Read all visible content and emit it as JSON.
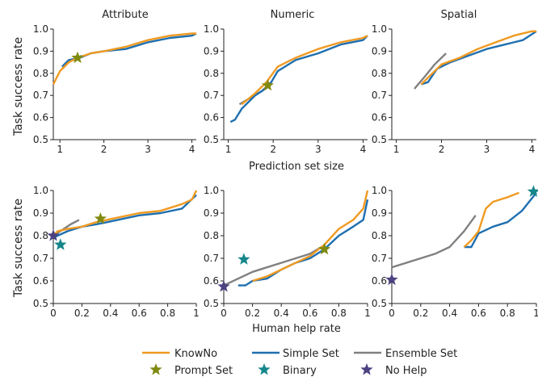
{
  "figure": {
    "columns": [
      "Attribute",
      "Numeric",
      "Spatial"
    ],
    "row_ylabels": [
      "Task success rate",
      "Task success rate"
    ],
    "row_xlabels": [
      "Prediction set size",
      "Human help rate"
    ]
  },
  "legend": {
    "placement": "bottom-center",
    "items": [
      {
        "label": "KnowNo",
        "kind": "line",
        "color": "#ef9a22"
      },
      {
        "label": "Simple Set",
        "kind": "line",
        "color": "#1f6faf"
      },
      {
        "label": "Ensemble Set",
        "kind": "line",
        "color": "#808080"
      },
      {
        "label": "Prompt Set",
        "kind": "star",
        "color": "#808a10"
      },
      {
        "label": "Binary",
        "kind": "star",
        "color": "#15868a"
      },
      {
        "label": "No Help",
        "kind": "star",
        "color": "#4a4281"
      }
    ]
  },
  "colors": {
    "knowno": "#ef9a22",
    "simple": "#1f6faf",
    "ensemble": "#808080",
    "prompt": "#808a10",
    "binary": "#15868a",
    "nohelp": "#4a4281"
  },
  "chart_data": [
    {
      "type": "line",
      "row": 0,
      "col": 0,
      "title": "Attribute",
      "xlabel": "",
      "ylabel": "Task success rate",
      "xlim": [
        0.85,
        4.1
      ],
      "ylim": [
        0.5,
        1.0
      ],
      "xticks": [
        "1",
        "2",
        "3",
        "4"
      ],
      "yticks": [
        "0.5",
        "0.6",
        "0.7",
        "0.8",
        "0.9",
        "1.0"
      ],
      "grid": false,
      "series": [
        {
          "name": "KnowNo",
          "color": "#ef9a22",
          "x": [
            0.85,
            1.0,
            1.2,
            1.4,
            1.7,
            2.0,
            2.5,
            3.0,
            3.5,
            4.0,
            4.1
          ],
          "y": [
            0.75,
            0.81,
            0.85,
            0.87,
            0.89,
            0.9,
            0.92,
            0.95,
            0.97,
            0.98,
            0.98
          ]
        },
        {
          "name": "Simple Set",
          "color": "#1f6faf",
          "x": [
            1.05,
            1.2,
            1.45,
            1.7,
            2.0,
            2.5,
            3.0,
            3.5,
            4.0,
            4.1
          ],
          "y": [
            0.83,
            0.86,
            0.87,
            0.89,
            0.9,
            0.91,
            0.94,
            0.96,
            0.97,
            0.98
          ]
        },
        {
          "name": "Ensemble Set",
          "color": "#808080",
          "x": [
            1.05,
            1.2,
            1.4,
            1.5
          ],
          "y": [
            0.82,
            0.85,
            0.87,
            0.88
          ]
        },
        {
          "name": "Prompt Set",
          "color": "#808a10",
          "marker": "star",
          "x": [
            1.4
          ],
          "y": [
            0.87
          ]
        }
      ]
    },
    {
      "type": "line",
      "row": 0,
      "col": 1,
      "title": "Numeric",
      "xlabel": "Prediction set size",
      "ylabel": "",
      "xlim": [
        0.9,
        4.1
      ],
      "ylim": [
        0.5,
        1.0
      ],
      "xticks": [
        "1",
        "2",
        "3",
        "4"
      ],
      "yticks": [
        "0.5",
        "0.6",
        "0.7",
        "0.8",
        "0.9",
        "1.0"
      ],
      "grid": false,
      "series": [
        {
          "name": "KnowNo",
          "color": "#ef9a22",
          "x": [
            1.3,
            1.6,
            1.85,
            2.1,
            2.5,
            3.0,
            3.5,
            4.0,
            4.1
          ],
          "y": [
            0.66,
            0.71,
            0.76,
            0.83,
            0.87,
            0.91,
            0.94,
            0.96,
            0.97
          ]
        },
        {
          "name": "Simple Set",
          "color": "#1f6faf",
          "x": [
            1.05,
            1.15,
            1.3,
            1.6,
            1.9,
            2.1,
            2.5,
            3.0,
            3.5,
            4.0,
            4.1
          ],
          "y": [
            0.58,
            0.59,
            0.64,
            0.7,
            0.74,
            0.81,
            0.86,
            0.89,
            0.93,
            0.95,
            0.97
          ]
        },
        {
          "name": "Ensemble Set",
          "color": "#808080",
          "x": [
            1.25,
            1.5,
            1.75,
            1.95
          ],
          "y": [
            0.66,
            0.69,
            0.72,
            0.76
          ]
        },
        {
          "name": "Prompt Set",
          "color": "#808a10",
          "marker": "star",
          "x": [
            1.88
          ],
          "y": [
            0.745
          ]
        }
      ]
    },
    {
      "type": "line",
      "row": 0,
      "col": 2,
      "title": "Spatial",
      "xlabel": "",
      "ylabel": "",
      "xlim": [
        0.9,
        4.1
      ],
      "ylim": [
        0.5,
        1.0
      ],
      "xticks": [
        "1",
        "2",
        "3",
        "4"
      ],
      "yticks": [
        "0.5",
        "0.6",
        "0.7",
        "0.8",
        "0.9",
        "1.0"
      ],
      "grid": false,
      "series": [
        {
          "name": "KnowNo",
          "color": "#ef9a22",
          "x": [
            1.55,
            1.8,
            2.0,
            2.4,
            2.8,
            3.2,
            3.6,
            4.0,
            4.1
          ],
          "y": [
            0.75,
            0.8,
            0.84,
            0.87,
            0.91,
            0.94,
            0.97,
            0.99,
            0.99
          ]
        },
        {
          "name": "Simple Set",
          "color": "#1f6faf",
          "x": [
            1.55,
            1.7,
            1.9,
            2.2,
            2.6,
            3.0,
            3.4,
            3.8,
            4.1
          ],
          "y": [
            0.75,
            0.76,
            0.82,
            0.85,
            0.88,
            0.91,
            0.93,
            0.95,
            0.99
          ]
        },
        {
          "name": "Ensemble Set",
          "color": "#808080",
          "x": [
            1.4,
            1.65,
            1.85,
            2.1
          ],
          "y": [
            0.73,
            0.79,
            0.84,
            0.89
          ]
        }
      ]
    },
    {
      "type": "line",
      "row": 1,
      "col": 0,
      "title": "",
      "xlabel": "",
      "ylabel": "Task success rate",
      "xlim": [
        0,
        1
      ],
      "ylim": [
        0.5,
        1.0
      ],
      "xticks": [
        "0",
        "0.2",
        "0.4",
        "0.6",
        "0.8",
        "1"
      ],
      "yticks": [
        "0.5",
        "0.6",
        "0.7",
        "0.8",
        "0.9",
        "1.0"
      ],
      "grid": false,
      "series": [
        {
          "name": "KnowNo",
          "color": "#ef9a22",
          "x": [
            0,
            0.03,
            0.1,
            0.2,
            0.3,
            0.45,
            0.6,
            0.75,
            0.9,
            0.97,
            1.0
          ],
          "y": [
            0.8,
            0.82,
            0.83,
            0.84,
            0.86,
            0.88,
            0.9,
            0.91,
            0.94,
            0.96,
            1.0
          ]
        },
        {
          "name": "Simple Set",
          "color": "#1f6faf",
          "x": [
            0,
            0.03,
            0.1,
            0.2,
            0.3,
            0.45,
            0.6,
            0.75,
            0.9,
            1.0
          ],
          "y": [
            0.79,
            0.8,
            0.82,
            0.84,
            0.85,
            0.87,
            0.89,
            0.9,
            0.92,
            0.98
          ]
        },
        {
          "name": "Ensemble Set",
          "color": "#808080",
          "x": [
            0,
            0.05,
            0.12,
            0.18
          ],
          "y": [
            0.8,
            0.82,
            0.85,
            0.87
          ]
        },
        {
          "name": "Prompt Set",
          "color": "#808a10",
          "marker": "star",
          "x": [
            0.33
          ],
          "y": [
            0.875
          ]
        },
        {
          "name": "Binary",
          "color": "#15868a",
          "marker": "star",
          "x": [
            0.05
          ],
          "y": [
            0.76
          ]
        },
        {
          "name": "No Help",
          "color": "#4a4281",
          "marker": "star",
          "x": [
            0.0
          ],
          "y": [
            0.8
          ]
        }
      ]
    },
    {
      "type": "line",
      "row": 1,
      "col": 1,
      "title": "",
      "xlabel": "Human help rate",
      "ylabel": "",
      "xlim": [
        0,
        1
      ],
      "ylim": [
        0.5,
        1.0
      ],
      "xticks": [
        "0",
        "0.2",
        "0.4",
        "0.6",
        "0.8",
        "1"
      ],
      "yticks": [
        "0.5",
        "0.6",
        "0.7",
        "0.8",
        "0.9",
        "1.0"
      ],
      "grid": false,
      "series": [
        {
          "name": "KnowNo",
          "color": "#ef9a22",
          "x": [
            0.2,
            0.3,
            0.4,
            0.5,
            0.6,
            0.7,
            0.8,
            0.9,
            0.97,
            1.0
          ],
          "y": [
            0.6,
            0.62,
            0.65,
            0.68,
            0.71,
            0.76,
            0.83,
            0.87,
            0.92,
            1.0
          ]
        },
        {
          "name": "Simple Set",
          "color": "#1f6faf",
          "x": [
            0.1,
            0.15,
            0.2,
            0.3,
            0.4,
            0.5,
            0.6,
            0.7,
            0.8,
            0.9,
            0.97,
            1.0
          ],
          "y": [
            0.58,
            0.58,
            0.6,
            0.61,
            0.65,
            0.68,
            0.7,
            0.74,
            0.8,
            0.84,
            0.87,
            0.96
          ]
        },
        {
          "name": "Ensemble Set",
          "color": "#808080",
          "x": [
            0,
            0.1,
            0.2,
            0.3,
            0.4,
            0.5,
            0.6,
            0.68
          ],
          "y": [
            0.58,
            0.61,
            0.64,
            0.66,
            0.68,
            0.7,
            0.72,
            0.75
          ]
        },
        {
          "name": "Prompt Set",
          "color": "#808a10",
          "marker": "star",
          "x": [
            0.7
          ],
          "y": [
            0.74
          ]
        },
        {
          "name": "Binary",
          "color": "#15868a",
          "marker": "star",
          "x": [
            0.14
          ],
          "y": [
            0.695
          ]
        },
        {
          "name": "No Help",
          "color": "#4a4281",
          "marker": "star",
          "x": [
            0.0
          ],
          "y": [
            0.575
          ]
        }
      ]
    },
    {
      "type": "line",
      "row": 1,
      "col": 2,
      "title": "",
      "xlabel": "",
      "ylabel": "",
      "xlim": [
        0,
        1
      ],
      "ylim": [
        0.5,
        1.0
      ],
      "xticks": [
        "0",
        "0.2",
        "0.4",
        "0.6",
        "0.8",
        "1"
      ],
      "yticks": [
        "0.5",
        "0.6",
        "0.7",
        "0.8",
        "0.9",
        "1.0"
      ],
      "grid": false,
      "series": [
        {
          "name": "KnowNo",
          "color": "#ef9a22",
          "x": [
            0.5,
            0.55,
            0.6,
            0.65,
            0.7,
            0.8,
            0.88
          ],
          "y": [
            0.75,
            0.78,
            0.82,
            0.92,
            0.95,
            0.97,
            0.99
          ]
        },
        {
          "name": "Simple Set",
          "color": "#1f6faf",
          "x": [
            0.5,
            0.55,
            0.6,
            0.7,
            0.8,
            0.9,
            0.95,
            1.0
          ],
          "y": [
            0.75,
            0.75,
            0.81,
            0.84,
            0.86,
            0.91,
            0.95,
            0.99
          ]
        },
        {
          "name": "Ensemble Set",
          "color": "#808080",
          "x": [
            0,
            0.1,
            0.2,
            0.3,
            0.4,
            0.5,
            0.58
          ],
          "y": [
            0.66,
            0.68,
            0.7,
            0.72,
            0.75,
            0.82,
            0.89
          ]
        },
        {
          "name": "Binary",
          "color": "#15868a",
          "marker": "star",
          "x": [
            0.98
          ],
          "y": [
            0.995
          ]
        },
        {
          "name": "No Help",
          "color": "#4a4281",
          "marker": "star",
          "x": [
            0.0
          ],
          "y": [
            0.605
          ]
        }
      ]
    }
  ]
}
